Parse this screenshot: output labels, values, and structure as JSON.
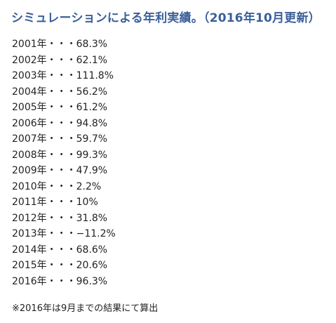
{
  "heading": "シミュレーションによる年利実績。（2016年10月更新）",
  "results": [
    "2001年・・・68.3%",
    "2002年・・・62.1%",
    "2003年・・・111.8%",
    "2004年・・・56.2%",
    "2005年・・・61.2%",
    "2006年・・・94.8%",
    "2007年・・・59.7%",
    "2008年・・・99.3%",
    "2009年・・・47.9%",
    "2010年・・・2.2%",
    "2011年・・・10%",
    "2012年・・・31.8%",
    "2013年・・・−11.2%",
    "2014年・・・68.6%",
    "2015年・・・20.6%",
    "2016年・・・96.3%"
  ],
  "footnote": "※2016年は9月までの結果にて算出",
  "colors": {
    "heading": "#3a5f9a",
    "text": "#222222",
    "background": "#ffffff"
  }
}
